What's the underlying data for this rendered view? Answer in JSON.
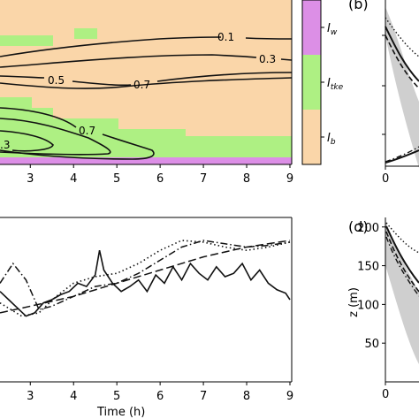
{
  "colors": {
    "I_b": "#fad6a9",
    "I_tke": "#aef083",
    "I_w": "#dc8fe6",
    "band_gray": "#cfcfcf"
  },
  "chart_data": [
    {
      "id": "a",
      "type": "heatmap",
      "description_visible": "regime map with contour lines",
      "x": {
        "ticks": [
          3,
          4,
          5,
          6,
          7,
          8,
          9
        ]
      },
      "contour_labels": [
        "0.1",
        "0.3",
        "0.5",
        "0.7",
        "0.7",
        ".3"
      ],
      "colorbar": {
        "labels": [
          {
            "main": "I",
            "sub": "w"
          },
          {
            "main": "I",
            "sub": "tke"
          },
          {
            "main": "I",
            "sub": "b"
          }
        ]
      }
    },
    {
      "id": "b",
      "type": "line",
      "panel_label": "(b)",
      "x": {
        "ticks": [
          "0"
        ]
      }
    },
    {
      "id": "c",
      "type": "line",
      "xlabel": "Time (h)",
      "x": {
        "ticks": [
          3,
          4,
          5,
          6,
          7,
          8,
          9
        ],
        "lim": [
          2.3,
          9
        ]
      },
      "series": [
        {
          "style": "solid",
          "x": [
            2.3,
            2.5,
            2.7,
            2.9,
            3.1,
            3.3,
            3.5,
            3.7,
            3.9,
            4.1,
            4.3,
            4.5,
            4.6,
            4.7,
            4.9,
            5.1,
            5.3,
            5.5,
            5.7,
            5.9,
            6.1,
            6.3,
            6.5,
            6.7,
            6.9,
            7.1,
            7.3,
            7.5,
            7.7,
            7.9,
            8.1,
            8.3,
            8.5,
            8.7,
            8.9,
            9.0
          ],
          "y": [
            0.55,
            0.5,
            0.45,
            0.4,
            0.42,
            0.48,
            0.5,
            0.53,
            0.55,
            0.6,
            0.58,
            0.65,
            0.8,
            0.68,
            0.6,
            0.55,
            0.58,
            0.62,
            0.55,
            0.65,
            0.6,
            0.7,
            0.62,
            0.72,
            0.66,
            0.62,
            0.7,
            0.64,
            0.66,
            0.72,
            0.62,
            0.68,
            0.6,
            0.56,
            0.54,
            0.5
          ]
        },
        {
          "style": "dotted",
          "x": [
            2.3,
            2.8,
            3.2,
            3.6,
            4.0,
            4.5,
            5.0,
            5.5,
            6.0,
            6.5,
            7.0,
            7.5,
            8.0,
            8.5,
            9.0
          ],
          "y": [
            0.48,
            0.4,
            0.42,
            0.52,
            0.6,
            0.64,
            0.66,
            0.72,
            0.8,
            0.86,
            0.85,
            0.82,
            0.8,
            0.82,
            0.85
          ]
        },
        {
          "style": "dashdot",
          "x": [
            2.3,
            2.6,
            2.9,
            3.2,
            3.5,
            4.0,
            4.5,
            5.0,
            5.5,
            6.0,
            6.5,
            7.0,
            7.5,
            8.0,
            8.5,
            9.0
          ],
          "y": [
            0.6,
            0.72,
            0.62,
            0.44,
            0.46,
            0.52,
            0.58,
            0.6,
            0.66,
            0.74,
            0.82,
            0.86,
            0.84,
            0.82,
            0.83,
            0.85
          ]
        },
        {
          "style": "dashed",
          "x": [
            2.3,
            3.0,
            4.0,
            5.0,
            6.0,
            7.0,
            8.0,
            9.0
          ],
          "y": [
            0.42,
            0.46,
            0.52,
            0.6,
            0.68,
            0.76,
            0.82,
            0.86
          ]
        }
      ]
    },
    {
      "id": "d",
      "type": "line",
      "panel_label": "(d)",
      "ylabel": "z (m)",
      "y": {
        "ticks": [
          50,
          100,
          150,
          200
        ],
        "lim": [
          0,
          210
        ]
      },
      "x": {
        "ticks": [
          "0"
        ]
      }
    }
  ]
}
